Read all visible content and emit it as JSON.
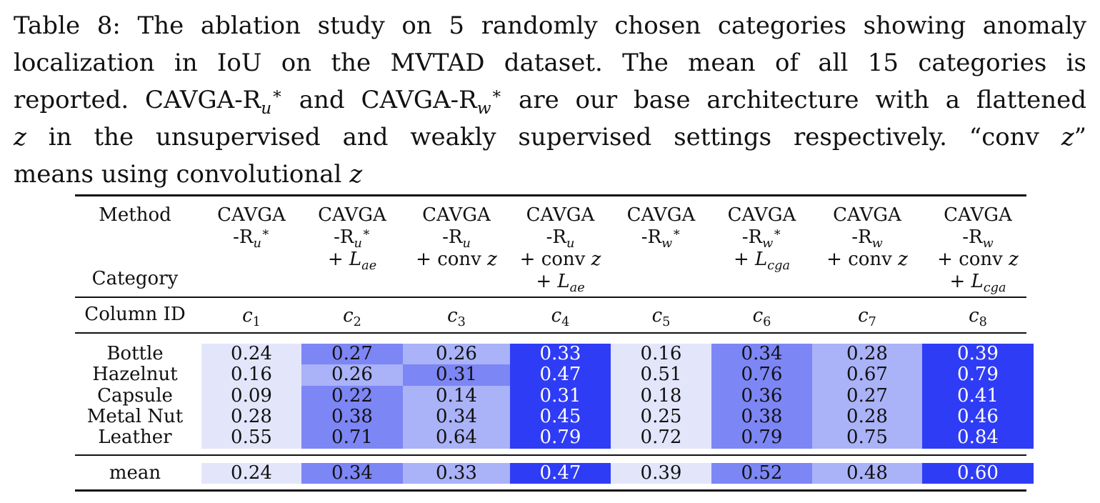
{
  "caption": {
    "line1": "Table 8: The ablation study on 5 randomly chosen categories showing anomaly",
    "line2": "localization in IoU on the MVTAD dataset. The mean of all 15 categories is",
    "line3_a": "reported. CAVGA-R",
    "line3_b": " and CAVGA-R",
    "line3_c": " are our base architecture with a flattened",
    "line4_b": " in the unsupervised and weakly supervised settings respectively. “conv ",
    "line4_c": "”",
    "line5": "means using convolutional "
  },
  "header": {
    "method_label": "Method",
    "category_label": "Category",
    "column_id_label": "Column ID"
  },
  "columns": [
    {
      "id": "c1",
      "lines": [
        "CAVGA",
        "-R*u"
      ]
    },
    {
      "id": "c2",
      "lines": [
        "CAVGA",
        "-R*u",
        "+ L_ae"
      ]
    },
    {
      "id": "c3",
      "lines": [
        "CAVGA",
        "-Ru",
        "+ conv z"
      ]
    },
    {
      "id": "c4",
      "lines": [
        "CAVGA",
        "-Ru",
        "+ conv z",
        "+ L_ae"
      ]
    },
    {
      "id": "c5",
      "lines": [
        "CAVGA",
        "-R*w"
      ]
    },
    {
      "id": "c6",
      "lines": [
        "CAVGA",
        "-R*w",
        "+ L_cga"
      ]
    },
    {
      "id": "c7",
      "lines": [
        "CAVGA",
        "-Rw",
        "+ conv z"
      ]
    },
    {
      "id": "c8",
      "lines": [
        "CAVGA",
        "-Rw",
        "+ conv z",
        "+ L_cga"
      ]
    }
  ],
  "rows": [
    {
      "category": "Bottle",
      "values": [
        "0.24",
        "0.27",
        "0.26",
        "0.33",
        "0.16",
        "0.34",
        "0.28",
        "0.39"
      ]
    },
    {
      "category": "Hazelnut",
      "values": [
        "0.16",
        "0.26",
        "0.31",
        "0.47",
        "0.51",
        "0.76",
        "0.67",
        "0.79"
      ]
    },
    {
      "category": "Capsule",
      "values": [
        "0.09",
        "0.22",
        "0.14",
        "0.31",
        "0.18",
        "0.36",
        "0.27",
        "0.41"
      ]
    },
    {
      "category": "Metal Nut",
      "values": [
        "0.28",
        "0.38",
        "0.34",
        "0.45",
        "0.25",
        "0.38",
        "0.28",
        "0.46"
      ]
    },
    {
      "category": "Leather",
      "values": [
        "0.55",
        "0.71",
        "0.64",
        "0.79",
        "0.72",
        "0.79",
        "0.75",
        "0.84"
      ]
    }
  ],
  "mean_row": {
    "category": "mean",
    "values": [
      "0.24",
      "0.34",
      "0.33",
      "0.47",
      "0.39",
      "0.52",
      "0.48",
      "0.60"
    ]
  },
  "colors": {
    "light": "#e3e6fb",
    "mid_light": "#aab2f8",
    "mid": "#7d86f5",
    "strong": "#2f3cf6"
  }
}
